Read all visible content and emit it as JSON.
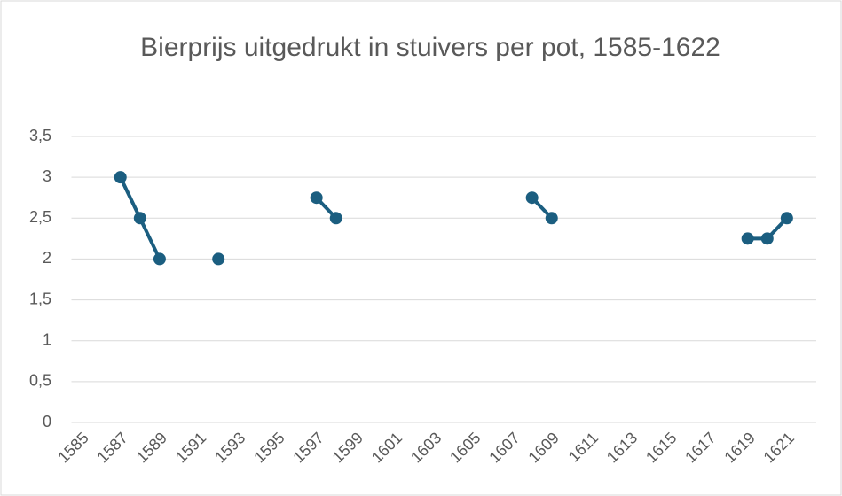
{
  "chart_data": {
    "type": "line",
    "title": "Bierprijs uitgedrukt in stuivers per pot, 1585-1622",
    "categories": [
      1585,
      null,
      1587,
      null,
      1589,
      null,
      1591,
      null,
      1593,
      null,
      1595,
      null,
      1597,
      null,
      1599,
      null,
      1601,
      null,
      1603,
      null,
      1605,
      null,
      1607,
      null,
      1609,
      null,
      1611,
      null,
      1613,
      null,
      1615,
      null,
      1617,
      null,
      1619,
      null,
      1621,
      null
    ],
    "series": [
      {
        "color": "#1b5e80",
        "values": [
          null,
          null,
          3,
          2.5,
          2,
          null,
          null,
          2,
          null,
          null,
          null,
          null,
          2.75,
          2.5,
          null,
          null,
          null,
          null,
          null,
          null,
          null,
          null,
          null,
          2.75,
          2.5,
          null,
          null,
          null,
          null,
          null,
          null,
          null,
          null,
          null,
          2.25,
          2.25,
          2.5,
          null
        ]
      }
    ],
    "ylim": [
      0,
      3.5
    ],
    "yticks": [
      0,
      {
        "value": 0.5,
        "label": "0,5"
      },
      1,
      {
        "value": 1.5,
        "label": "1,5"
      },
      2,
      {
        "value": 2.5,
        "label": "2,5"
      },
      3,
      {
        "value": 3.5,
        "label": "3,5"
      }
    ],
    "grid": true
  }
}
